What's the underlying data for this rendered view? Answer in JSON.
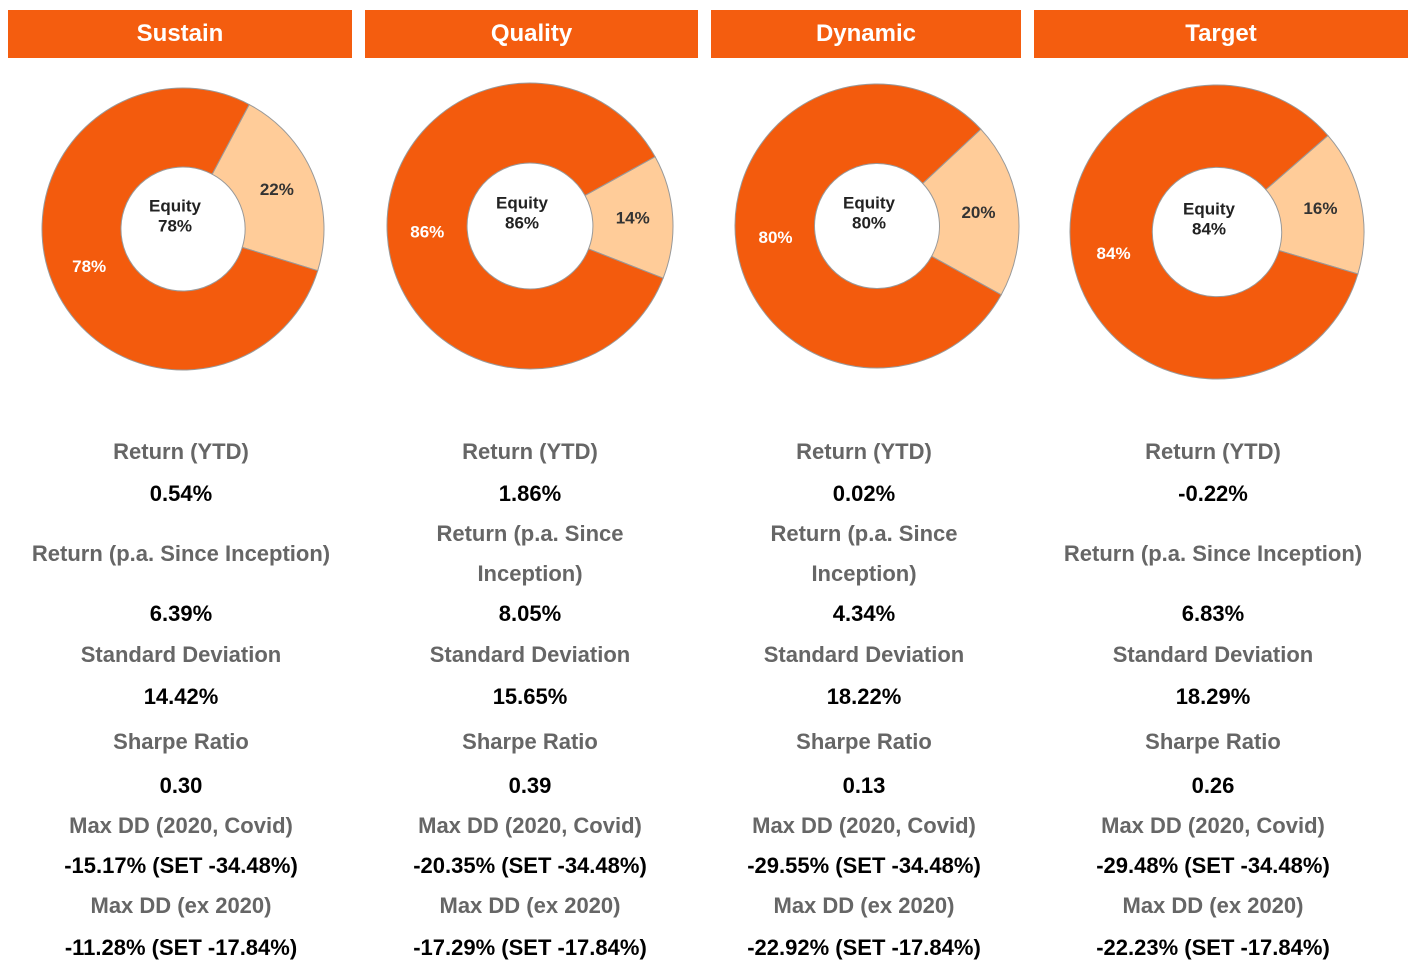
{
  "chart_data": [
    {
      "type": "pie",
      "title": "Sustain",
      "categories": [
        "Equity",
        null
      ],
      "values": [
        78,
        22
      ],
      "value_labels": [
        "78%",
        "22%"
      ],
      "colors": [
        "#f35b0d",
        "#ffcc99"
      ],
      "stats": [
        [
          "Return (YTD)",
          "0.54%"
        ],
        [
          "Return (p.a. Since Inception)",
          "6.39%"
        ],
        [
          "Standard Deviation",
          "14.42%"
        ],
        [
          "Sharpe Ratio",
          "0.30"
        ],
        [
          "Max DD (2020, Covid)",
          "-15.17% (SET -34.48%)"
        ],
        [
          "Max DD (ex 2020)",
          "-11.28% (SET -17.84%)"
        ]
      ]
    },
    {
      "type": "pie",
      "title": "Quality",
      "categories": [
        "Equity",
        null
      ],
      "values": [
        86,
        14
      ],
      "value_labels": [
        "86%",
        "14%"
      ],
      "colors": [
        "#f35b0d",
        "#ffcc99"
      ],
      "stats": [
        [
          "Return (YTD)",
          "1.86%"
        ],
        [
          "Return (p.a. Since Inception)",
          "8.05%"
        ],
        [
          "Standard Deviation",
          "15.65%"
        ],
        [
          "Sharpe Ratio",
          "0.39"
        ],
        [
          "Max DD (2020, Covid)",
          "-20.35% (SET -34.48%)"
        ],
        [
          "Max DD (ex 2020)",
          "-17.29% (SET -17.84%)"
        ]
      ]
    },
    {
      "type": "pie",
      "title": "Dynamic",
      "categories": [
        "Equity",
        null
      ],
      "values": [
        80,
        20
      ],
      "value_labels": [
        "80%",
        "20%"
      ],
      "colors": [
        "#f35b0d",
        "#ffcc99"
      ],
      "stats": [
        [
          "Return (YTD)",
          "0.02%"
        ],
        [
          "Return (p.a. Since Inception)",
          "4.34%"
        ],
        [
          "Standard Deviation",
          "18.22%"
        ],
        [
          "Sharpe Ratio",
          "0.13"
        ],
        [
          "Max DD (2020, Covid)",
          "-29.55% (SET -34.48%)"
        ],
        [
          "Max DD (ex 2020)",
          "-22.92% (SET -17.84%)"
        ]
      ]
    },
    {
      "type": "pie",
      "title": "Target",
      "categories": [
        "Equity",
        null
      ],
      "values": [
        84,
        16
      ],
      "value_labels": [
        "84%",
        "16%"
      ],
      "colors": [
        "#f35b0d",
        "#ffcc99"
      ],
      "stats": [
        [
          "Return (YTD)",
          "-0.22%"
        ],
        [
          "Return (p.a. Since Inception)",
          "6.83%"
        ],
        [
          "Standard Deviation",
          "18.29%"
        ],
        [
          "Sharpe Ratio",
          "0.26"
        ],
        [
          "Max DD (2020, Covid)",
          "-29.48% (SET -34.48%)"
        ],
        [
          "Max DD (ex 2020)",
          "-22.23% (SET -17.84%)"
        ]
      ]
    }
  ]
}
